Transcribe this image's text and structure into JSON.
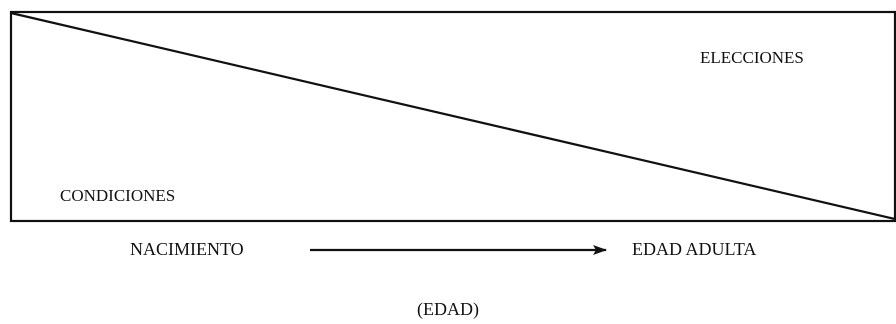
{
  "regions": {
    "upper_label": "ELECCIONES",
    "lower_label": "CONDICIONES"
  },
  "timeline": {
    "start_label": "NACIMIENTO",
    "end_label": "EDAD ADULTA",
    "axis_label": "(EDAD)"
  },
  "colors": {
    "stroke": "#111111",
    "background": "#ffffff"
  }
}
